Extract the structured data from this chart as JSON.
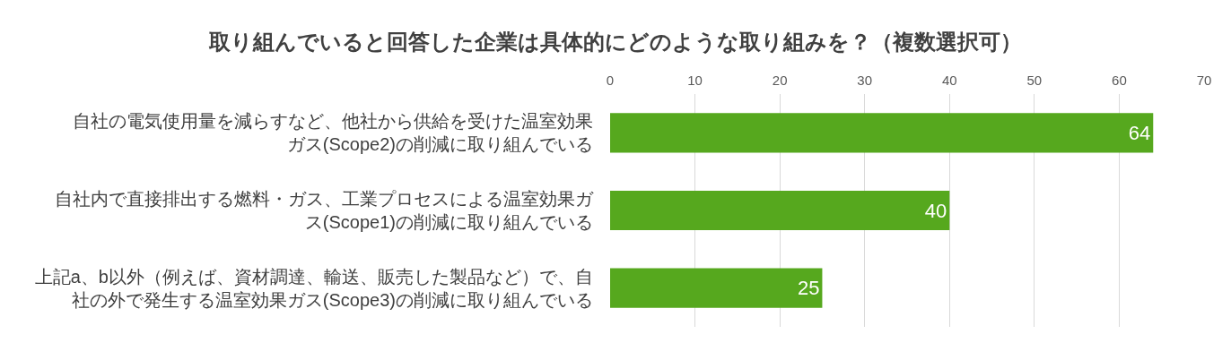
{
  "chart_data": {
    "type": "bar",
    "orientation": "horizontal",
    "title": "取り組んでいると回答した企業は具体的にどのような取り組みを？（複数選択可）",
    "categories": [
      "自社の電気使用量を減らすなど、他社から供給を受けた温室効果ガス(Scope2)の削減に取り組んでいる",
      "自社内で直接排出する燃料・ガス、工業プロセスによる温室効果ガス(Scope1)の削減に取り組んでいる",
      "上記a、b以外（例えば、資材調達、輸送、販売した製品など）で、自社の外で発生する温室効果ガス(Scope3)の削減に取り組んでいる"
    ],
    "values": [
      64,
      40,
      25
    ],
    "color": "#56a81e",
    "xlim": [
      0,
      70
    ],
    "xticks": [
      0,
      10,
      20,
      30,
      40,
      50,
      60,
      70
    ],
    "grid": "x",
    "data_labels": true
  }
}
